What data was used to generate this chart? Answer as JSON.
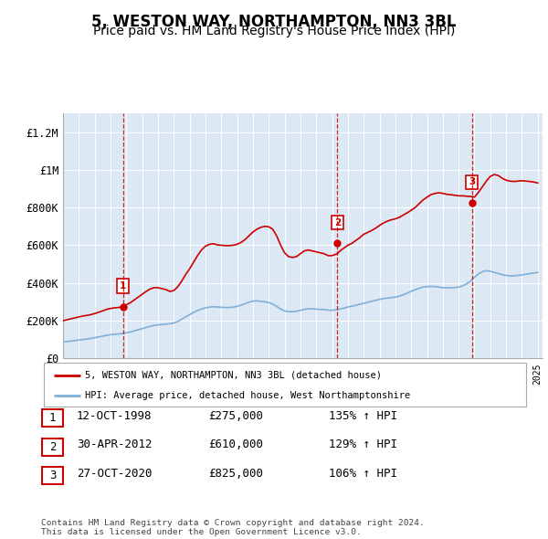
{
  "title": "5, WESTON WAY, NORTHAMPTON, NN3 3BL",
  "subtitle": "Price paid vs. HM Land Registry's House Price Index (HPI)",
  "title_fontsize": 12,
  "subtitle_fontsize": 10,
  "background_color": "#ffffff",
  "plot_bg_color": "#dce9f5",
  "grid_color": "#ffffff",
  "red_color": "#cc0000",
  "blue_color": "#7fb0d8",
  "vline_color": "#cc0000",
  "ylim": [
    0,
    1300000
  ],
  "yticks": [
    0,
    200000,
    400000,
    600000,
    800000,
    1000000,
    1200000
  ],
  "ytick_labels": [
    "£0",
    "£200K",
    "£400K",
    "£600K",
    "£800K",
    "£1M",
    "£1.2M"
  ],
  "sale_decimal_years": [
    1998.79,
    2012.33,
    2020.83
  ],
  "sale_prices": [
    275000,
    610000,
    825000
  ],
  "sale_labels": [
    "1",
    "2",
    "3"
  ],
  "legend_label_red": "5, WESTON WAY, NORTHAMPTON, NN3 3BL (detached house)",
  "legend_label_blue": "HPI: Average price, detached house, West Northamptonshire",
  "table_rows": [
    {
      "num": "1",
      "date": "12-OCT-1998",
      "price": "£275,000",
      "hpi": "135% ↑ HPI"
    },
    {
      "num": "2",
      "date": "30-APR-2012",
      "price": "£610,000",
      "hpi": "129% ↑ HPI"
    },
    {
      "num": "3",
      "date": "27-OCT-2020",
      "price": "£825,000",
      "hpi": "106% ↑ HPI"
    }
  ],
  "footer": "Contains HM Land Registry data © Crown copyright and database right 2024.\nThis data is licensed under the Open Government Licence v3.0.",
  "hpi_red_years": [
    1995.0,
    1995.25,
    1995.5,
    1995.75,
    1996.0,
    1996.25,
    1996.5,
    1996.75,
    1997.0,
    1997.25,
    1997.5,
    1997.75,
    1998.0,
    1998.25,
    1998.5,
    1998.79,
    1999.0,
    1999.25,
    1999.5,
    1999.75,
    2000.0,
    2000.25,
    2000.5,
    2000.75,
    2001.0,
    2001.25,
    2001.5,
    2001.75,
    2002.0,
    2002.25,
    2002.5,
    2002.75,
    2003.0,
    2003.25,
    2003.5,
    2003.75,
    2004.0,
    2004.25,
    2004.5,
    2004.75,
    2005.0,
    2005.25,
    2005.5,
    2005.75,
    2006.0,
    2006.25,
    2006.5,
    2006.75,
    2007.0,
    2007.25,
    2007.5,
    2007.75,
    2008.0,
    2008.25,
    2008.5,
    2008.75,
    2009.0,
    2009.25,
    2009.5,
    2009.75,
    2010.0,
    2010.25,
    2010.5,
    2010.75,
    2011.0,
    2011.25,
    2011.5,
    2011.75,
    2012.0,
    2012.33,
    2012.5,
    2012.75,
    2013.0,
    2013.25,
    2013.5,
    2013.75,
    2014.0,
    2014.25,
    2014.5,
    2014.75,
    2015.0,
    2015.25,
    2015.5,
    2015.75,
    2016.0,
    2016.25,
    2016.5,
    2016.75,
    2017.0,
    2017.25,
    2017.5,
    2017.75,
    2018.0,
    2018.25,
    2018.5,
    2018.75,
    2019.0,
    2019.25,
    2019.5,
    2019.75,
    2020.0,
    2020.25,
    2020.5,
    2020.83,
    2021.0,
    2021.25,
    2021.5,
    2021.75,
    2022.0,
    2022.25,
    2022.5,
    2022.75,
    2023.0,
    2023.25,
    2023.5,
    2023.75,
    2024.0,
    2024.25,
    2024.5,
    2024.75,
    2025.0
  ],
  "hpi_red_values": [
    200000,
    205000,
    210000,
    215000,
    220000,
    225000,
    228000,
    232000,
    238000,
    245000,
    252000,
    260000,
    265000,
    268000,
    270000,
    275000,
    285000,
    295000,
    310000,
    325000,
    340000,
    355000,
    368000,
    375000,
    375000,
    370000,
    365000,
    355000,
    360000,
    380000,
    410000,
    445000,
    475000,
    510000,
    545000,
    575000,
    595000,
    605000,
    608000,
    602000,
    600000,
    598000,
    598000,
    600000,
    605000,
    615000,
    630000,
    650000,
    670000,
    685000,
    695000,
    700000,
    698000,
    685000,
    650000,
    600000,
    560000,
    540000,
    535000,
    540000,
    555000,
    570000,
    575000,
    570000,
    565000,
    560000,
    555000,
    545000,
    545000,
    555000,
    570000,
    585000,
    600000,
    610000,
    625000,
    640000,
    658000,
    668000,
    678000,
    690000,
    705000,
    718000,
    728000,
    735000,
    740000,
    748000,
    760000,
    772000,
    785000,
    800000,
    820000,
    840000,
    855000,
    868000,
    875000,
    878000,
    875000,
    870000,
    868000,
    865000,
    862000,
    862000,
    860000,
    858000,
    855000,
    880000,
    910000,
    940000,
    965000,
    975000,
    970000,
    955000,
    945000,
    940000,
    938000,
    940000,
    942000,
    940000,
    938000,
    935000,
    930000
  ],
  "hpi_blue_years": [
    1995.0,
    1995.25,
    1995.5,
    1995.75,
    1996.0,
    1996.25,
    1996.5,
    1996.75,
    1997.0,
    1997.25,
    1997.5,
    1997.75,
    1998.0,
    1998.25,
    1998.5,
    1998.75,
    1999.0,
    1999.25,
    1999.5,
    1999.75,
    2000.0,
    2000.25,
    2000.5,
    2000.75,
    2001.0,
    2001.25,
    2001.5,
    2001.75,
    2002.0,
    2002.25,
    2002.5,
    2002.75,
    2003.0,
    2003.25,
    2003.5,
    2003.75,
    2004.0,
    2004.25,
    2004.5,
    2004.75,
    2005.0,
    2005.25,
    2005.5,
    2005.75,
    2006.0,
    2006.25,
    2006.5,
    2006.75,
    2007.0,
    2007.25,
    2007.5,
    2007.75,
    2008.0,
    2008.25,
    2008.5,
    2008.75,
    2009.0,
    2009.25,
    2009.5,
    2009.75,
    2010.0,
    2010.25,
    2010.5,
    2010.75,
    2011.0,
    2011.25,
    2011.5,
    2011.75,
    2012.0,
    2012.25,
    2012.5,
    2012.75,
    2013.0,
    2013.25,
    2013.5,
    2013.75,
    2014.0,
    2014.25,
    2014.5,
    2014.75,
    2015.0,
    2015.25,
    2015.5,
    2015.75,
    2016.0,
    2016.25,
    2016.5,
    2016.75,
    2017.0,
    2017.25,
    2017.5,
    2017.75,
    2018.0,
    2018.25,
    2018.5,
    2018.75,
    2019.0,
    2019.25,
    2019.5,
    2019.75,
    2020.0,
    2020.25,
    2020.5,
    2020.75,
    2021.0,
    2021.25,
    2021.5,
    2021.75,
    2022.0,
    2022.25,
    2022.5,
    2022.75,
    2023.0,
    2023.25,
    2023.5,
    2023.75,
    2024.0,
    2024.25,
    2024.5,
    2024.75,
    2025.0
  ],
  "hpi_blue_values": [
    88000,
    90000,
    92000,
    95000,
    98000,
    100000,
    103000,
    106000,
    110000,
    114000,
    118000,
    122000,
    126000,
    128000,
    130000,
    132000,
    136000,
    140000,
    146000,
    152000,
    158000,
    164000,
    170000,
    175000,
    178000,
    180000,
    182000,
    184000,
    188000,
    196000,
    208000,
    220000,
    232000,
    244000,
    254000,
    262000,
    268000,
    272000,
    274000,
    273000,
    271000,
    270000,
    270000,
    272000,
    276000,
    282000,
    290000,
    298000,
    304000,
    305000,
    303000,
    300000,
    296000,
    288000,
    276000,
    262000,
    252000,
    248000,
    248000,
    250000,
    255000,
    260000,
    263000,
    263000,
    261000,
    260000,
    259000,
    256000,
    255000,
    258000,
    262000,
    267000,
    273000,
    277000,
    282000,
    287000,
    292000,
    297000,
    303000,
    308000,
    313000,
    317000,
    320000,
    322000,
    325000,
    330000,
    338000,
    346000,
    356000,
    364000,
    372000,
    378000,
    381000,
    382000,
    381000,
    378000,
    375000,
    374000,
    374000,
    376000,
    378000,
    385000,
    395000,
    410000,
    430000,
    448000,
    460000,
    465000,
    462000,
    456000,
    450000,
    444000,
    440000,
    438000,
    438000,
    440000,
    443000,
    446000,
    450000,
    453000,
    456000
  ]
}
